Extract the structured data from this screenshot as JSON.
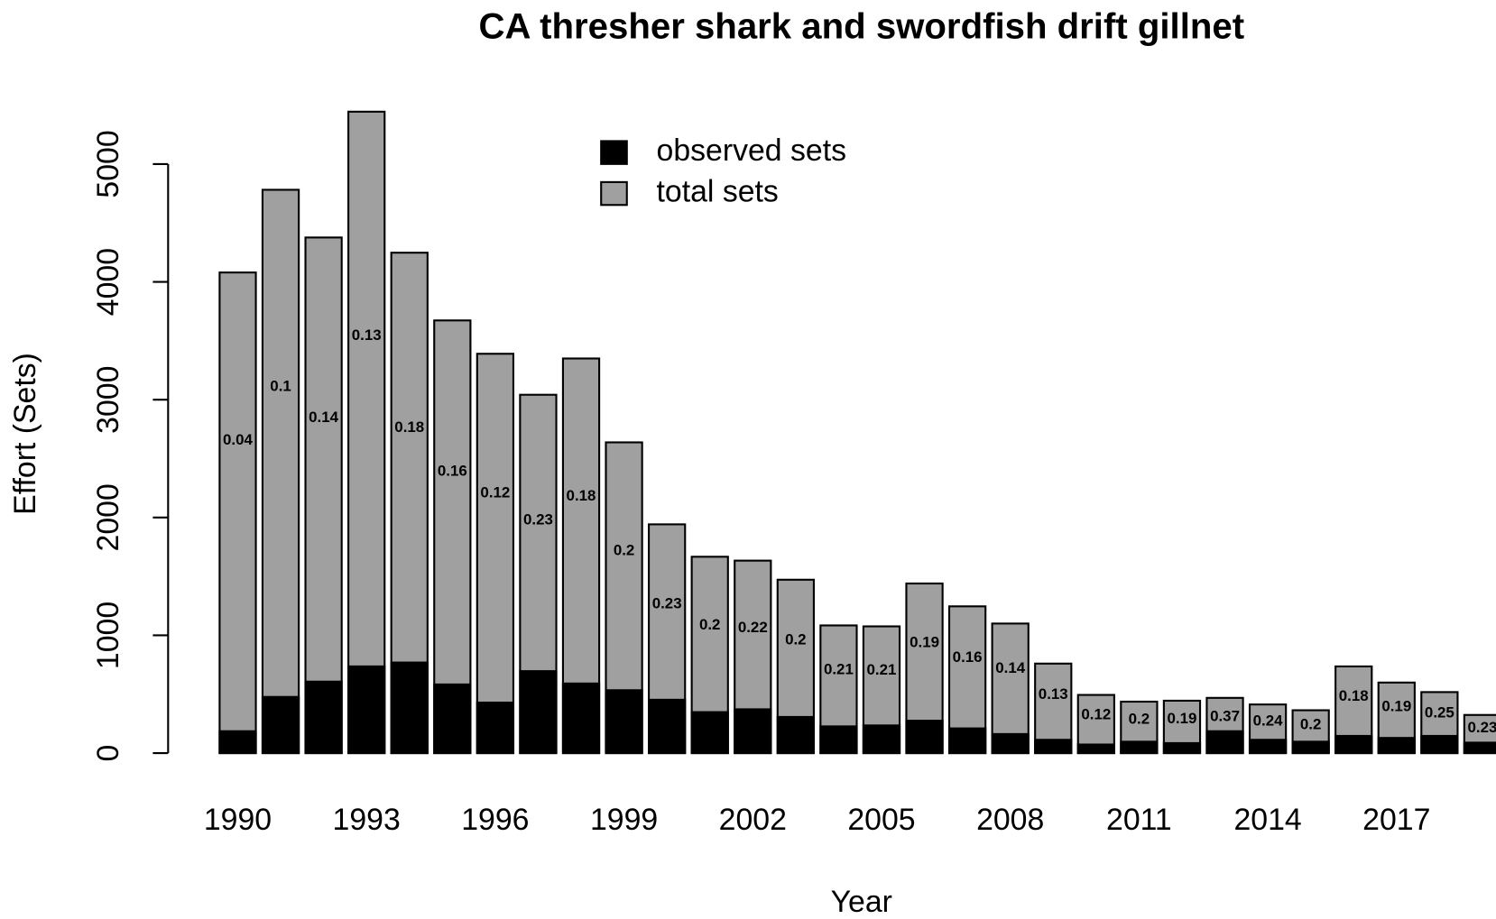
{
  "chart_data": {
    "type": "bar",
    "title": "CA thresher shark and swordfish drift gillnet",
    "x_label": "Year",
    "y_label": "Effort (Sets)",
    "categories": [
      "1990",
      null,
      null,
      "1993",
      null,
      null,
      "1996",
      null,
      null,
      "1999",
      null,
      null,
      "2002",
      null,
      null,
      "2005",
      null,
      null,
      "2008",
      null,
      null,
      "2011",
      null,
      null,
      "2014",
      null,
      null,
      "2017",
      null,
      null
    ],
    "series": [
      {
        "name": "observed sets",
        "color": "#000000",
        "values": [
          186,
          477,
          607,
          736,
          769,
          583,
          429,
          696,
          591,
          534,
          453,
          348,
          372,
          307,
          227,
          235,
          275,
          210,
          162,
          113,
          73,
          97,
          85,
          186,
          113,
          97,
          146,
          129,
          146,
          89
        ]
      },
      {
        "name": "total sets",
        "color": "#a0a0a0",
        "values": [
          4080,
          4782,
          4377,
          5445,
          4248,
          3673,
          3390,
          3042,
          3350,
          2638,
          1942,
          1667,
          1634,
          1472,
          1084,
          1076,
          1440,
          1246,
          1100,
          760,
          494,
          437,
          445,
          469,
          413,
          364,
          736,
          599,
          518,
          324
        ]
      }
    ],
    "coverage": [
      0.04,
      0.1,
      0.14,
      0.13,
      0.18,
      0.16,
      0.12,
      0.23,
      0.18,
      0.2,
      0.23,
      0.2,
      0.22,
      0.2,
      0.21,
      0.21,
      0.19,
      0.16,
      0.14,
      0.13,
      0.12,
      0.2,
      0.19,
      0.37,
      0.24,
      0.2,
      0.18,
      0.19,
      0.25,
      0.23
    ],
    "ylim": [
      0,
      5600
    ],
    "yticks": [
      0,
      1000,
      2000,
      3000,
      4000,
      5000
    ],
    "legend": "top"
  }
}
